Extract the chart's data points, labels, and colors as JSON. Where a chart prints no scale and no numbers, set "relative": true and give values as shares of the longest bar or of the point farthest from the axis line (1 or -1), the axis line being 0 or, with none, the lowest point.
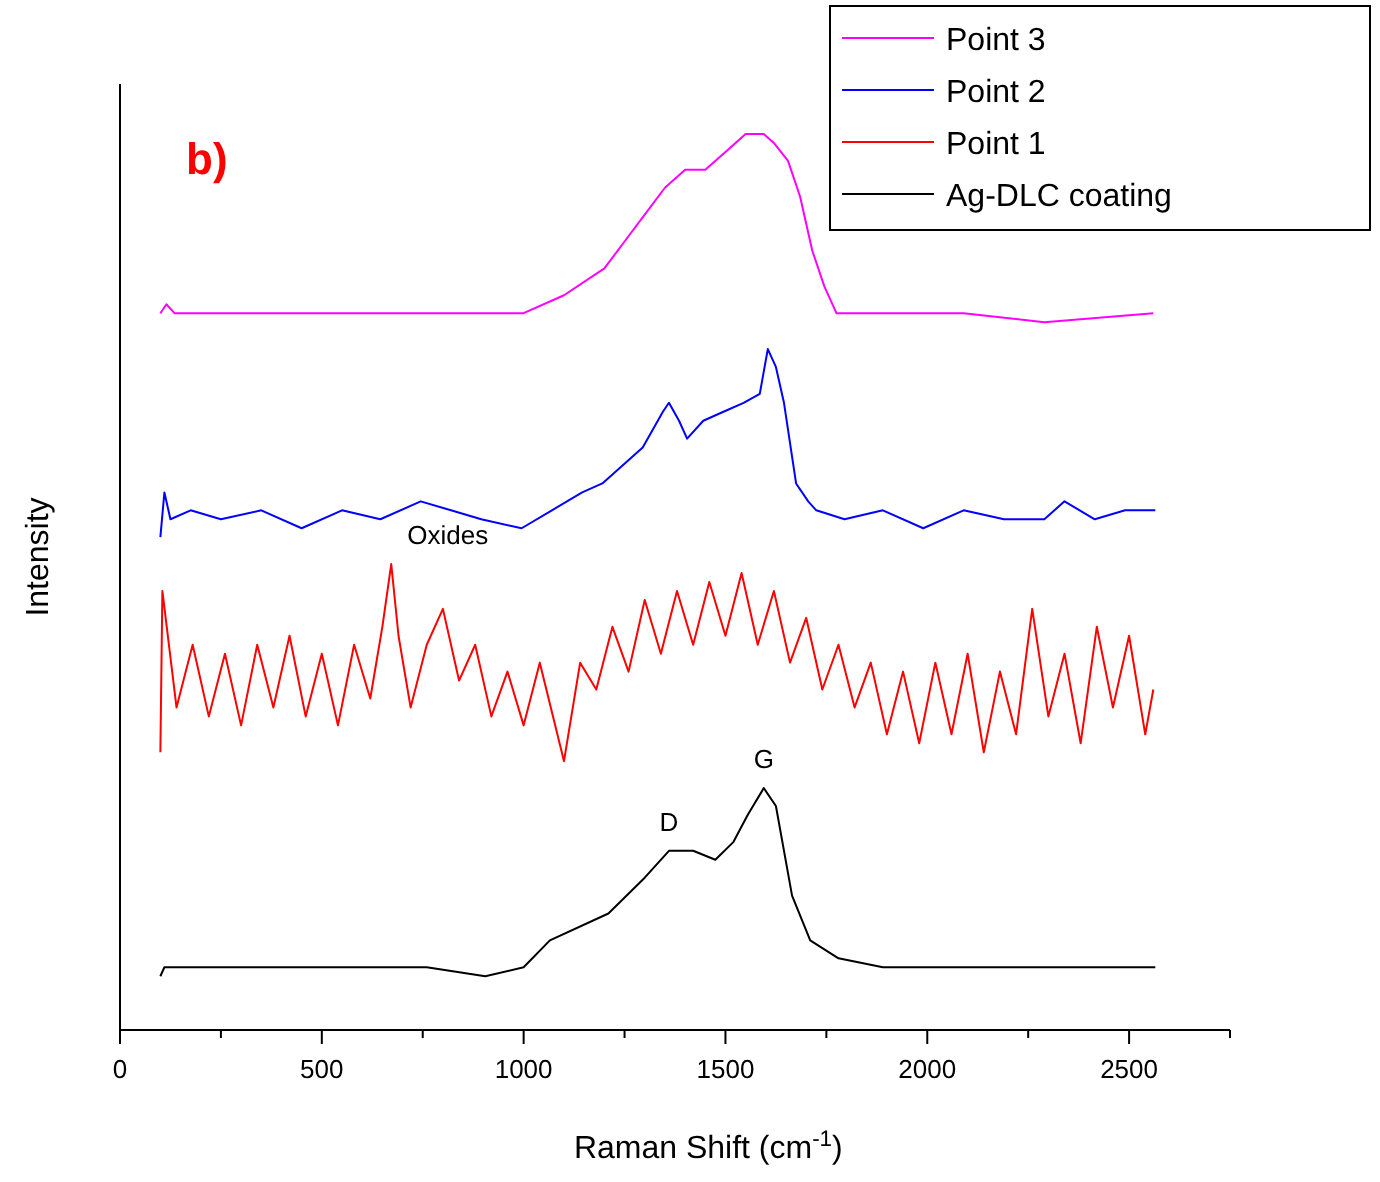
{
  "chart_data": {
    "type": "line",
    "relative": true,
    "xlabel": "Raman Shift (cm$^{-1}$)",
    "ylabel": "Intensity",
    "xlim": [
      0,
      2750
    ],
    "xticks": [
      0,
      {
        "value": 250,
        "label": null
      },
      500,
      {
        "value": 750,
        "label": null
      },
      1000,
      {
        "value": 1250,
        "label": null
      },
      1500,
      {
        "value": 1750,
        "label": null
      },
      2000,
      {
        "value": 2250,
        "label": null
      },
      2500,
      {
        "value": 2750,
        "label": null
      }
    ],
    "tick_labels": "x",
    "grid": false,
    "legend": "top right",
    "marker": "none",
    "line_style": "solid",
    "annotations": [
      "b)",
      {
        "text": "Oxides",
        "x": 672,
        "y": 0.52
      },
      {
        "text": "D",
        "x": 1360,
        "y": 0.2
      },
      {
        "text": "G",
        "x": 1595,
        "y": 0.27
      }
    ],
    "series": [
      {
        "name": "Point 3",
        "color": "#ff00ff",
        "x": [
          100,
          115,
          135,
          200,
          400,
          600,
          700,
          900,
          1000,
          1100,
          1200,
          1250,
          1300,
          1350,
          1400,
          1450,
          1500,
          1550,
          1570,
          1595,
          1620,
          1655,
          1685,
          1715,
          1745,
          1775,
          1845,
          2090,
          2290,
          2560
        ],
        "values": [
          0.8,
          0.81,
          0.8,
          0.8,
          0.8,
          0.8,
          0.8,
          0.8,
          0.8,
          0.82,
          0.85,
          0.88,
          0.91,
          0.94,
          0.96,
          0.96,
          0.98,
          1.0,
          1.0,
          1.0,
          0.99,
          0.97,
          0.93,
          0.87,
          0.83,
          0.8,
          0.8,
          0.8,
          0.79,
          0.8
        ]
      },
      {
        "name": "Point 2",
        "color": "#0000ff",
        "x": [
          100,
          110,
          125,
          175,
          250,
          350,
          450,
          550,
          645,
          745,
          820,
          895,
          995,
          1070,
          1145,
          1195,
          1245,
          1295,
          1345,
          1360,
          1385,
          1405,
          1445,
          1495,
          1545,
          1585,
          1605,
          1625,
          1645,
          1675,
          1705,
          1725,
          1795,
          1890,
          1990,
          2090,
          2190,
          2290,
          2340,
          2415,
          2490,
          2565
        ],
        "values": [
          0.55,
          0.6,
          0.57,
          0.58,
          0.57,
          0.58,
          0.56,
          0.58,
          0.57,
          0.59,
          0.58,
          0.57,
          0.56,
          0.58,
          0.6,
          0.61,
          0.63,
          0.65,
          0.69,
          0.7,
          0.68,
          0.66,
          0.68,
          0.69,
          0.7,
          0.71,
          0.76,
          0.74,
          0.7,
          0.61,
          0.59,
          0.58,
          0.57,
          0.58,
          0.56,
          0.58,
          0.57,
          0.57,
          0.59,
          0.57,
          0.58,
          0.58
        ]
      },
      {
        "name": "Point 1",
        "color": "#ff0000",
        "x": [
          100,
          105,
          140,
          180,
          220,
          260,
          300,
          340,
          380,
          420,
          460,
          500,
          540,
          580,
          620,
          650,
          672,
          690,
          720,
          760,
          800,
          840,
          880,
          920,
          960,
          1000,
          1040,
          1100,
          1140,
          1180,
          1220,
          1260,
          1300,
          1340,
          1380,
          1420,
          1460,
          1500,
          1540,
          1580,
          1620,
          1660,
          1700,
          1740,
          1780,
          1820,
          1860,
          1900,
          1940,
          1980,
          2020,
          2060,
          2100,
          2140,
          2180,
          2220,
          2260,
          2300,
          2340,
          2380,
          2420,
          2460,
          2500,
          2540,
          2560
        ],
        "values": [
          0.31,
          0.49,
          0.36,
          0.43,
          0.35,
          0.42,
          0.34,
          0.43,
          0.36,
          0.44,
          0.35,
          0.42,
          0.34,
          0.43,
          0.37,
          0.45,
          0.52,
          0.44,
          0.36,
          0.43,
          0.47,
          0.39,
          0.43,
          0.35,
          0.4,
          0.34,
          0.41,
          0.3,
          0.41,
          0.38,
          0.45,
          0.4,
          0.48,
          0.42,
          0.49,
          0.43,
          0.5,
          0.44,
          0.51,
          0.43,
          0.49,
          0.41,
          0.46,
          0.38,
          0.43,
          0.36,
          0.41,
          0.33,
          0.4,
          0.32,
          0.41,
          0.33,
          0.42,
          0.31,
          0.4,
          0.33,
          0.47,
          0.35,
          0.42,
          0.32,
          0.45,
          0.36,
          0.44,
          0.33,
          0.38
        ]
      },
      {
        "name": "Ag-DLC coating",
        "color": "#000000",
        "x": [
          100,
          110,
          300,
          600,
          760,
          905,
          1000,
          1065,
          1210,
          1300,
          1360,
          1420,
          1475,
          1520,
          1555,
          1595,
          1625,
          1665,
          1710,
          1780,
          1890,
          2190,
          2565
        ],
        "values": [
          0.06,
          0.07,
          0.07,
          0.07,
          0.07,
          0.06,
          0.07,
          0.1,
          0.13,
          0.17,
          0.2,
          0.2,
          0.19,
          0.21,
          0.24,
          0.27,
          0.25,
          0.15,
          0.1,
          0.08,
          0.07,
          0.07,
          0.07
        ]
      }
    ]
  }
}
